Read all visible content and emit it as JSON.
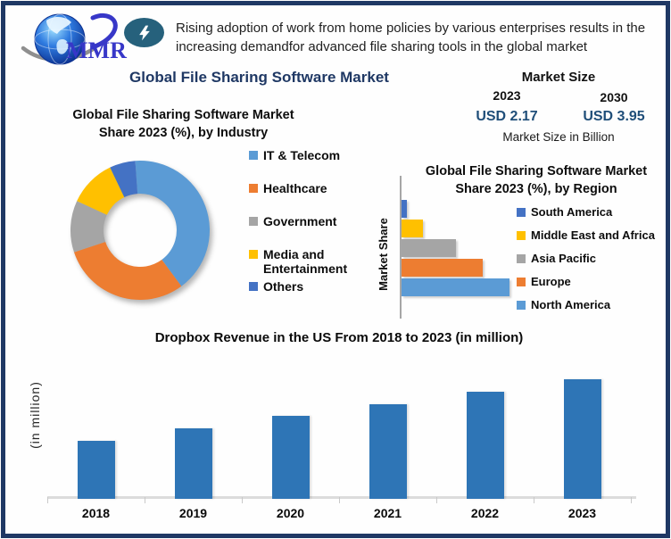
{
  "header": {
    "logo_text": "MMR",
    "logo_icon": "globe-icon",
    "badge_icon": "lightning-bolt-icon",
    "headline_line1": "Rising adoption of work from home policies by various enterprises results in the",
    "headline_line2": "increasing demandfor advanced file sharing tools in the global market",
    "title": "Global File Sharing Software Market"
  },
  "market_size": {
    "heading": "Market Size",
    "start_year": "2023",
    "end_year": "2030",
    "start_value": "USD 2.17",
    "end_value": "USD 3.95",
    "unit_note": "Market Size in Billion",
    "value_color": "#1F4E79"
  },
  "colors": {
    "frame_border": "#1F3864",
    "title_navy": "#1F3864",
    "palette": [
      "#5B9BD5",
      "#ED7D31",
      "#A5A5A5",
      "#FFC000",
      "#4472C4"
    ],
    "revenue_bar": "#2E75B6",
    "axis_gray": "#A6A6A6"
  },
  "chart_data": [
    {
      "id": "industry_donut",
      "type": "pie",
      "subtype": "donut",
      "title_line1": "Global File Sharing Software Market",
      "title_line2": "Share 2023 (%), by Industry",
      "categories": [
        "IT & Telecom",
        "Healthcare",
        "Government",
        "Media and Entertainment",
        "Others"
      ],
      "values": [
        41,
        30,
        12,
        11,
        6
      ],
      "colors": [
        "#5B9BD5",
        "#ED7D31",
        "#A5A5A5",
        "#FFC000",
        "#4472C4"
      ],
      "legend_position": "right",
      "start_angle_deg": -4,
      "values_note": "percent of total, estimated from arc angles (no data labels shown)"
    },
    {
      "id": "region_bars",
      "type": "bar",
      "orientation": "horizontal",
      "title_line1": "Global File Sharing Software Market",
      "title_line2": "Share 2023 (%), by Region",
      "ylabel": "Market Share",
      "categories": [
        "South America",
        "Middle East and Africa",
        "Asia Pacific",
        "Europe",
        "North America"
      ],
      "values": [
        2,
        8,
        20,
        30,
        40
      ],
      "colors": [
        "#4472C4",
        "#FFC000",
        "#A5A5A5",
        "#ED7D31",
        "#5B9BD5"
      ],
      "legend_position": "right",
      "grid": false,
      "values_note": "percent share, estimated from relative bar lengths (value axis unlabeled)"
    },
    {
      "id": "dropbox_revenue",
      "type": "bar",
      "orientation": "vertical",
      "title": "Dropbox Revenue in the US From 2018 to 2023 (in million)",
      "ylabel": "(in million)",
      "categories": [
        "2018",
        "2019",
        "2020",
        "2021",
        "2022",
        "2023"
      ],
      "values": [
        48.5,
        58.9,
        69.4,
        79.1,
        89.6,
        100
      ],
      "bar_color": "#2E75B6",
      "grid": false,
      "values_note": "relative bar heights with 2023 = 100 (value axis unlabeled)"
    }
  ]
}
